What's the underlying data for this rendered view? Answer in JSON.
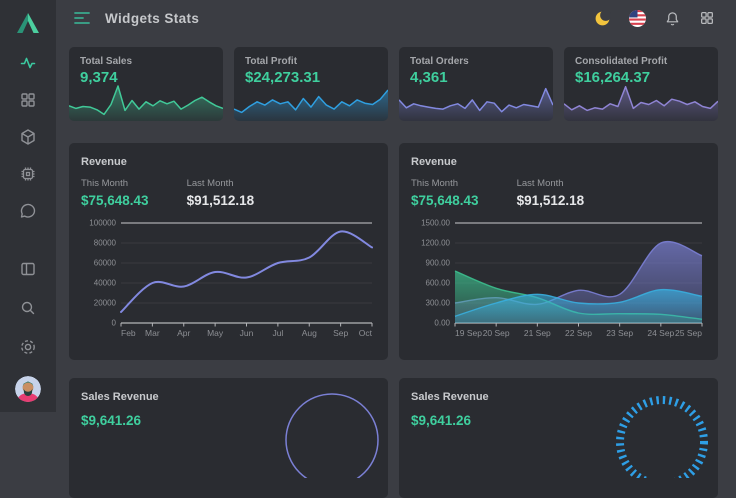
{
  "header": {
    "title": "Widgets Stats",
    "menu_icon": "hamburger-menu-icon",
    "right_icons": [
      "moon-icon",
      "us-flag-icon",
      "bell-icon",
      "apps-grid-icon"
    ]
  },
  "sidebar": {
    "logo_icon": "triangle-logo",
    "top_icons": [
      "activity-icon",
      "apps-grid-icon",
      "package-icon",
      "cpu-icon",
      "chat-icon"
    ],
    "bottom_icons": [
      "layout-icon",
      "search-icon",
      "settings-icon"
    ],
    "avatar_icon": "user-avatar"
  },
  "colors": {
    "accent_green": "#3fcf9e",
    "page_bg": "#3b3d43",
    "card_bg": "#2a2c31",
    "sidebar_bg": "#2f3136"
  },
  "stat_cards": [
    {
      "label": "Total Sales",
      "value": "9,374",
      "color": "#41c998",
      "spark": [
        40,
        32,
        38,
        36,
        28,
        14,
        44,
        100,
        26,
        56,
        30,
        52,
        40,
        55,
        46,
        54,
        30,
        42,
        56,
        66,
        52,
        40,
        32
      ]
    },
    {
      "label": "Total Profit",
      "value": "$24,273.31",
      "color": "#2f9fe0",
      "spark": [
        30,
        20,
        38,
        52,
        42,
        58,
        46,
        52,
        28,
        62,
        36,
        68,
        42,
        30,
        52,
        40,
        58,
        48,
        44,
        60,
        88
      ]
    },
    {
      "label": "Total Orders",
      "value": "4,361",
      "color": "#8289e0",
      "spark": [
        58,
        34,
        46,
        40,
        36,
        32,
        30,
        40,
        46,
        32,
        58,
        26,
        52,
        48,
        22,
        42,
        34,
        44,
        40,
        36,
        92,
        42
      ]
    },
    {
      "label": "Consolidated Profit",
      "value": "$16,264.37",
      "color": "#8f84d4",
      "spark": [
        46,
        28,
        40,
        26,
        34,
        30,
        46,
        38,
        98,
        32,
        50,
        44,
        56,
        40,
        60,
        54,
        44,
        52,
        38,
        32,
        54
      ]
    }
  ],
  "revenue_left": {
    "title": "Revenue",
    "this_month_label": "This Month",
    "this_month_value": "$75,648.43",
    "last_month_label": "Last Month",
    "last_month_value": "$91,512.18",
    "chart_data": {
      "type": "line",
      "x": [
        "Feb",
        "Mar",
        "Apr",
        "May",
        "Jun",
        "Jul",
        "Aug",
        "Sep",
        "Oct"
      ],
      "values": [
        11000,
        40000,
        36500,
        51000,
        45500,
        60000,
        65500,
        91500,
        75600
      ],
      "ylim": [
        0,
        100000
      ],
      "yticks": [
        0,
        20000,
        40000,
        60000,
        80000,
        100000
      ],
      "ytick_labels": [
        "0",
        "20000",
        "40000",
        "60000",
        "80000",
        "100000"
      ],
      "line_color": "#8289e0",
      "grid": "horizontal",
      "legend": "none"
    }
  },
  "revenue_right": {
    "title": "Revenue",
    "this_month_label": "This Month",
    "this_month_value": "$75,648.43",
    "last_month_label": "Last Month",
    "last_month_value": "$91,512.18",
    "chart_data": {
      "type": "area",
      "x": [
        "19 Sep",
        "20 Sep",
        "21 Sep",
        "22 Sep",
        "23 Sep",
        "24 Sep",
        "25 Sep"
      ],
      "ylim": [
        0,
        1500
      ],
      "yticks": [
        0,
        300,
        600,
        900,
        1200,
        1500
      ],
      "ytick_labels": [
        "0.00",
        "300.00",
        "600.00",
        "900.00",
        "1200.00",
        "1500.00"
      ],
      "grid": "horizontal",
      "legend": "none",
      "series": [
        {
          "name": "series-purple",
          "color": "#7b80d5",
          "values": [
            300,
            380,
            280,
            490,
            430,
            1200,
            1010
          ]
        },
        {
          "name": "series-green",
          "color": "#3cbf8e",
          "values": [
            780,
            520,
            380,
            150,
            140,
            130,
            55
          ]
        },
        {
          "name": "series-cyan",
          "color": "#38aede",
          "values": [
            100,
            300,
            430,
            300,
            310,
            500,
            400
          ]
        }
      ]
    }
  },
  "bottom_cards": [
    {
      "title": "Sales Revenue",
      "value": "$9,641.26",
      "gauge": {
        "style": "thin-arc",
        "color": "#7b80d5"
      }
    },
    {
      "title": "Sales Revenue",
      "value": "$9,641.26",
      "gauge": {
        "style": "tick-ring",
        "color": "#2e9fe6"
      }
    }
  ]
}
